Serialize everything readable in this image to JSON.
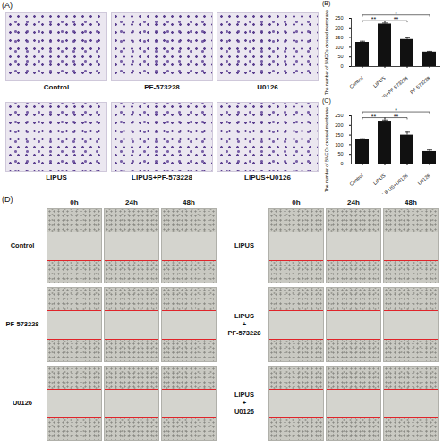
{
  "figure_panels": {
    "A": {
      "label": "(A)",
      "images": [
        "Control",
        "PF-573228",
        "U0126",
        "LIPUS",
        "LIPUS+PF-573228",
        "LIPUS+U0126"
      ]
    },
    "D": {
      "label": "(D)",
      "columns": [
        "0h",
        "24h",
        "48h"
      ],
      "groups": [
        [
          "Control",
          "PF-573228",
          "U0126"
        ],
        [
          "LIPUS",
          "LIPUS + PF-573228",
          "LIPUS + U0126"
        ]
      ]
    }
  },
  "chart_data": [
    {
      "type": "bar",
      "title": "(B)",
      "y_label": "The number of BMECs crossed membrane",
      "categories": [
        "Control",
        "LIPUS",
        "LIPUS+PF-573228",
        "PF-573228"
      ],
      "values": [
        125,
        220,
        140,
        75
      ],
      "errors": [
        6,
        5,
        12,
        4
      ],
      "color": "#111111",
      "ylim": [
        0,
        250
      ],
      "yticks": [
        0,
        50,
        100,
        150,
        200,
        250
      ],
      "significance": [
        {
          "from": "Control",
          "to": "LIPUS",
          "label": "**"
        },
        {
          "from": "LIPUS",
          "to": "LIPUS+PF-573228",
          "label": "**"
        },
        {
          "from": "Control",
          "to": "PF-573228",
          "label": "*"
        }
      ]
    },
    {
      "type": "bar",
      "title": "(C)",
      "y_label": "The number of BMECs crossed membrane",
      "categories": [
        "Control",
        "LIPUS",
        "LIPUS+U0126",
        "U0126"
      ],
      "values": [
        125,
        222,
        150,
        65
      ],
      "errors": [
        6,
        6,
        15,
        8
      ],
      "color": "#111111",
      "ylim": [
        0,
        250
      ],
      "yticks": [
        0,
        50,
        100,
        150,
        200,
        250
      ],
      "significance": [
        {
          "from": "Control",
          "to": "LIPUS",
          "label": "**"
        },
        {
          "from": "LIPUS",
          "to": "LIPUS+U0126",
          "label": "**"
        },
        {
          "from": "Control",
          "to": "U0126",
          "label": "*"
        }
      ]
    }
  ]
}
